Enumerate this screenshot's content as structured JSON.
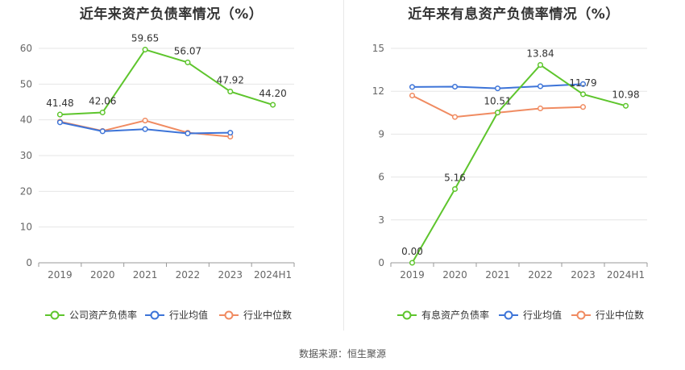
{
  "source_label": "数据来源：恒生聚源",
  "colors": {
    "company": "#5ec52d",
    "industry_avg": "#3d74d8",
    "industry_median": "#f08b61",
    "grid": "#e6e6e6",
    "axis": "#999999",
    "tick_text": "#666666"
  },
  "chart_data": [
    {
      "type": "line",
      "title": "近年来资产负债率情况（%）",
      "categories": [
        "2019",
        "2020",
        "2021",
        "2022",
        "2023",
        "2024H1"
      ],
      "ylim": [
        0,
        60
      ],
      "yticks": [
        0,
        10,
        20,
        30,
        40,
        50,
        60
      ],
      "grid": true,
      "legend_position": "bottom",
      "series": [
        {
          "name": "公司资产负债率",
          "color_key": "company",
          "values": [
            41.48,
            42.06,
            59.65,
            56.07,
            47.92,
            44.2
          ],
          "labels": [
            "41.48",
            "42.06",
            "59.65",
            "56.07",
            "47.92",
            "44.20"
          ]
        },
        {
          "name": "行业均值",
          "color_key": "industry_avg",
          "values": [
            39.3,
            36.8,
            37.4,
            36.2,
            36.4,
            null
          ]
        },
        {
          "name": "行业中位数",
          "color_key": "industry_median",
          "values": [
            39.5,
            36.9,
            39.8,
            36.4,
            35.3,
            null
          ]
        }
      ]
    },
    {
      "type": "line",
      "title": "近年来有息资产负债率情况（%）",
      "categories": [
        "2019",
        "2020",
        "2021",
        "2022",
        "2023",
        "2024H1"
      ],
      "ylim": [
        0,
        15
      ],
      "yticks": [
        0,
        3,
        6,
        9,
        12,
        15
      ],
      "grid": true,
      "legend_position": "bottom",
      "series": [
        {
          "name": "有息资产负债率",
          "color_key": "company",
          "values": [
            0.0,
            5.16,
            10.51,
            13.84,
            11.79,
            10.98
          ],
          "labels": [
            "0.00",
            "5.16",
            "10.51",
            "13.84",
            "11.79",
            "10.98"
          ]
        },
        {
          "name": "行业均值",
          "color_key": "industry_avg",
          "values": [
            12.3,
            12.32,
            12.2,
            12.35,
            12.5,
            null
          ]
        },
        {
          "name": "行业中位数",
          "color_key": "industry_median",
          "values": [
            11.7,
            10.2,
            10.5,
            10.8,
            10.9,
            null
          ]
        }
      ]
    }
  ]
}
